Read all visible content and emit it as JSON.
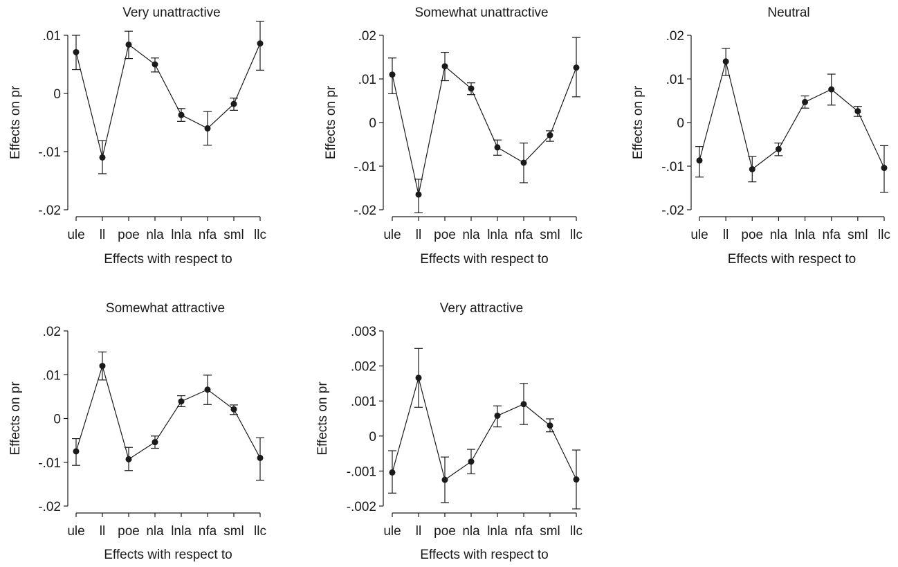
{
  "chart_data": [
    {
      "type": "line",
      "title": "Very unattractive",
      "xlabel": "Effects with respect to",
      "ylabel": "Effects on pr",
      "categories": [
        "ule",
        "ll",
        "poe",
        "nla",
        "lnla",
        "nfa",
        "sml",
        "llc"
      ],
      "ylim": [
        -0.02,
        0.01
      ],
      "yticks": [
        -0.02,
        -0.01,
        0,
        0.01
      ],
      "ytick_labels": [
        "-.02",
        "-.01",
        "0",
        ".01"
      ],
      "values": [
        0.0071,
        -0.011,
        0.0084,
        0.005,
        -0.0037,
        -0.006,
        -0.0018,
        0.0086
      ],
      "err_low": [
        0.0041,
        -0.0138,
        0.006,
        0.0037,
        -0.0048,
        -0.0089,
        -0.0029,
        0.004
      ],
      "err_high": [
        0.01,
        -0.0081,
        0.0107,
        0.0061,
        -0.0026,
        -0.0031,
        -0.0008,
        0.0124
      ]
    },
    {
      "type": "line",
      "title": "Somewhat unattractive",
      "xlabel": "Effects with respect to",
      "ylabel": "Effects on pr",
      "categories": [
        "ule",
        "ll",
        "poe",
        "nla",
        "lnla",
        "nfa",
        "sml",
        "llc"
      ],
      "ylim": [
        -0.02,
        0.02
      ],
      "yticks": [
        -0.02,
        -0.01,
        0,
        0.01,
        0.02
      ],
      "ytick_labels": [
        "-.02",
        "-.01",
        "0",
        ".01",
        ".02"
      ],
      "values": [
        0.011,
        -0.0165,
        0.0129,
        0.0078,
        -0.0057,
        -0.0092,
        -0.0029,
        0.0126
      ],
      "err_low": [
        0.0066,
        -0.0207,
        0.0096,
        0.0064,
        -0.0075,
        -0.0138,
        -0.0043,
        0.0059
      ],
      "err_high": [
        0.0148,
        -0.013,
        0.0161,
        0.0091,
        -0.004,
        -0.0047,
        -0.0019,
        0.0195
      ]
    },
    {
      "type": "line",
      "title": "Neutral",
      "xlabel": "Effects with respect to",
      "ylabel": "Effects on pr",
      "categories": [
        "ule",
        "ll",
        "poe",
        "nla",
        "lnla",
        "nfa",
        "sml",
        "llc"
      ],
      "ylim": [
        -0.02,
        0.02
      ],
      "yticks": [
        -0.02,
        -0.01,
        0,
        0.01,
        0.02
      ],
      "ytick_labels": [
        "-.02",
        "-.01",
        "0",
        ".01",
        ".02"
      ],
      "values": [
        -0.0087,
        0.014,
        -0.0107,
        -0.0061,
        0.0047,
        0.0076,
        0.0026,
        -0.0104
      ],
      "err_low": [
        -0.0125,
        0.0108,
        -0.0136,
        -0.0076,
        0.0033,
        0.004,
        0.0014,
        -0.016
      ],
      "err_high": [
        -0.0055,
        0.017,
        -0.0078,
        -0.0047,
        0.0061,
        0.0111,
        0.0037,
        -0.0053
      ]
    },
    {
      "type": "line",
      "title": "Somewhat attractive",
      "xlabel": "Effects with respect to",
      "ylabel": "Effects on pr",
      "categories": [
        "ule",
        "ll",
        "poe",
        "nla",
        "lnla",
        "nfa",
        "sml",
        "llc"
      ],
      "ylim": [
        -0.02,
        0.02
      ],
      "yticks": [
        -0.02,
        -0.01,
        0,
        0.01,
        0.02
      ],
      "ytick_labels": [
        "-.02",
        "-.01",
        "0",
        ".01",
        ".02"
      ],
      "values": [
        -0.0075,
        0.012,
        -0.0093,
        -0.0054,
        0.0039,
        0.0066,
        0.0021,
        -0.009
      ],
      "err_low": [
        -0.0107,
        0.0088,
        -0.0119,
        -0.0068,
        0.0027,
        0.0032,
        0.0009,
        -0.0141
      ],
      "err_high": [
        -0.0046,
        0.0152,
        -0.0066,
        -0.004,
        0.0052,
        0.0099,
        0.0031,
        -0.0044
      ]
    },
    {
      "type": "line",
      "title": "Very attractive",
      "xlabel": "Effects with respect to",
      "ylabel": "Effects on pr",
      "categories": [
        "ule",
        "ll",
        "poe",
        "nla",
        "lnla",
        "nfa",
        "sml",
        "llc"
      ],
      "ylim": [
        -0.002,
        0.003
      ],
      "yticks": [
        -0.002,
        -0.001,
        0,
        0.001,
        0.002,
        0.003
      ],
      "ytick_labels": [
        "-.002",
        "-.001",
        "0",
        ".001",
        ".002",
        ".003"
      ],
      "values": [
        -0.00104,
        0.00166,
        -0.00125,
        -0.00073,
        0.00058,
        0.00091,
        0.0003,
        -0.00124
      ],
      "err_low": [
        -0.00163,
        0.00082,
        -0.0019,
        -0.00108,
        0.00026,
        0.00033,
        0.00012,
        -0.00208
      ],
      "err_high": [
        -0.00042,
        0.0025,
        -0.0006,
        -0.00038,
        0.00086,
        0.0015,
        0.00049,
        -0.0004
      ]
    }
  ]
}
